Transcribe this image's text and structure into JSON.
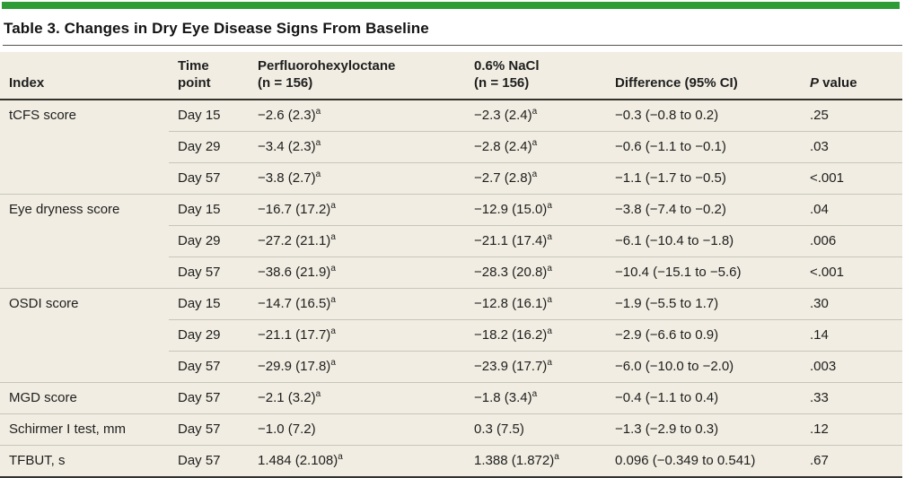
{
  "colors": {
    "accent_green": "#2D9C35",
    "table_background": "#F1EDE2",
    "rule_light": "#C8C5BB",
    "rule_dark": "#33312C"
  },
  "table": {
    "title": "Table 3. Changes in Dry Eye Disease Signs From Baseline",
    "columns": {
      "index": {
        "line1": "Index"
      },
      "time": {
        "line1": "Time",
        "line2": "point"
      },
      "drug": {
        "line1": "Perfluorohexyloctane",
        "line2": "(n = 156)"
      },
      "nacl": {
        "line1": "0.6% NaCl",
        "line2": "(n = 156)"
      },
      "diff": {
        "line1": "Difference (95% CI)"
      },
      "pvalue": {
        "italic": "P",
        "rest": " value"
      }
    },
    "rows": [
      {
        "index": "tCFS score",
        "time": "Day 15",
        "drug": "−2.6 (2.3)",
        "drug_sup": "a",
        "nacl": "−2.3 (2.4)",
        "nacl_sup": "a",
        "diff": "−0.3 (−0.8 to 0.2)",
        "p": ".25"
      },
      {
        "index": "",
        "time": "Day 29",
        "drug": "−3.4 (2.3)",
        "drug_sup": "a",
        "nacl": "−2.8 (2.4)",
        "nacl_sup": "a",
        "diff": "−0.6 (−1.1 to −0.1)",
        "p": ".03"
      },
      {
        "index": "",
        "time": "Day 57",
        "drug": "−3.8 (2.7)",
        "drug_sup": "a",
        "nacl": "−2.7 (2.8)",
        "nacl_sup": "a",
        "diff": "−1.1 (−1.7 to −0.5)",
        "p": "<.001"
      },
      {
        "index": "Eye dryness score",
        "time": "Day 15",
        "drug": "−16.7 (17.2)",
        "drug_sup": "a",
        "nacl": "−12.9 (15.0)",
        "nacl_sup": "a",
        "diff": "−3.8 (−7.4 to −0.2)",
        "p": ".04"
      },
      {
        "index": "",
        "time": "Day 29",
        "drug": "−27.2 (21.1)",
        "drug_sup": "a",
        "nacl": "−21.1 (17.4)",
        "nacl_sup": "a",
        "diff": "−6.1 (−10.4 to −1.8)",
        "p": ".006"
      },
      {
        "index": "",
        "time": "Day 57",
        "drug": "−38.6 (21.9)",
        "drug_sup": "a",
        "nacl": "−28.3 (20.8)",
        "nacl_sup": "a",
        "diff": "−10.4 (−15.1 to −5.6)",
        "p": "<.001"
      },
      {
        "index": "OSDI score",
        "time": "Day 15",
        "drug": "−14.7 (16.5)",
        "drug_sup": "a",
        "nacl": "−12.8 (16.1)",
        "nacl_sup": "a",
        "diff": "−1.9 (−5.5 to 1.7)",
        "p": ".30"
      },
      {
        "index": "",
        "time": "Day 29",
        "drug": "−21.1 (17.7)",
        "drug_sup": "a",
        "nacl": "−18.2 (16.2)",
        "nacl_sup": "a",
        "diff": "−2.9 (−6.6 to 0.9)",
        "p": ".14"
      },
      {
        "index": "",
        "time": "Day 57",
        "drug": "−29.9 (17.8)",
        "drug_sup": "a",
        "nacl": "−23.9 (17.7)",
        "nacl_sup": "a",
        "diff": "−6.0 (−10.0 to −2.0)",
        "p": ".003"
      },
      {
        "index": "MGD score",
        "time": "Day 57",
        "drug": "−2.1 (3.2)",
        "drug_sup": "a",
        "nacl": "−1.8 (3.4)",
        "nacl_sup": "a",
        "diff": "−0.4 (−1.1 to 0.4)",
        "p": ".33"
      },
      {
        "index": "Schirmer I test, mm",
        "time": "Day 57",
        "drug": "−1.0 (7.2)",
        "drug_sup": "",
        "nacl": "0.3 (7.5)",
        "nacl_sup": "",
        "diff": "−1.3 (−2.9 to 0.3)",
        "p": ".12"
      },
      {
        "index": "TFBUT, s",
        "time": "Day 57",
        "drug": "1.484 (2.108)",
        "drug_sup": "a",
        "nacl": "1.388 (1.872)",
        "nacl_sup": "a",
        "diff": "0.096 (−0.349 to 0.541)",
        "p": ".67"
      }
    ]
  }
}
